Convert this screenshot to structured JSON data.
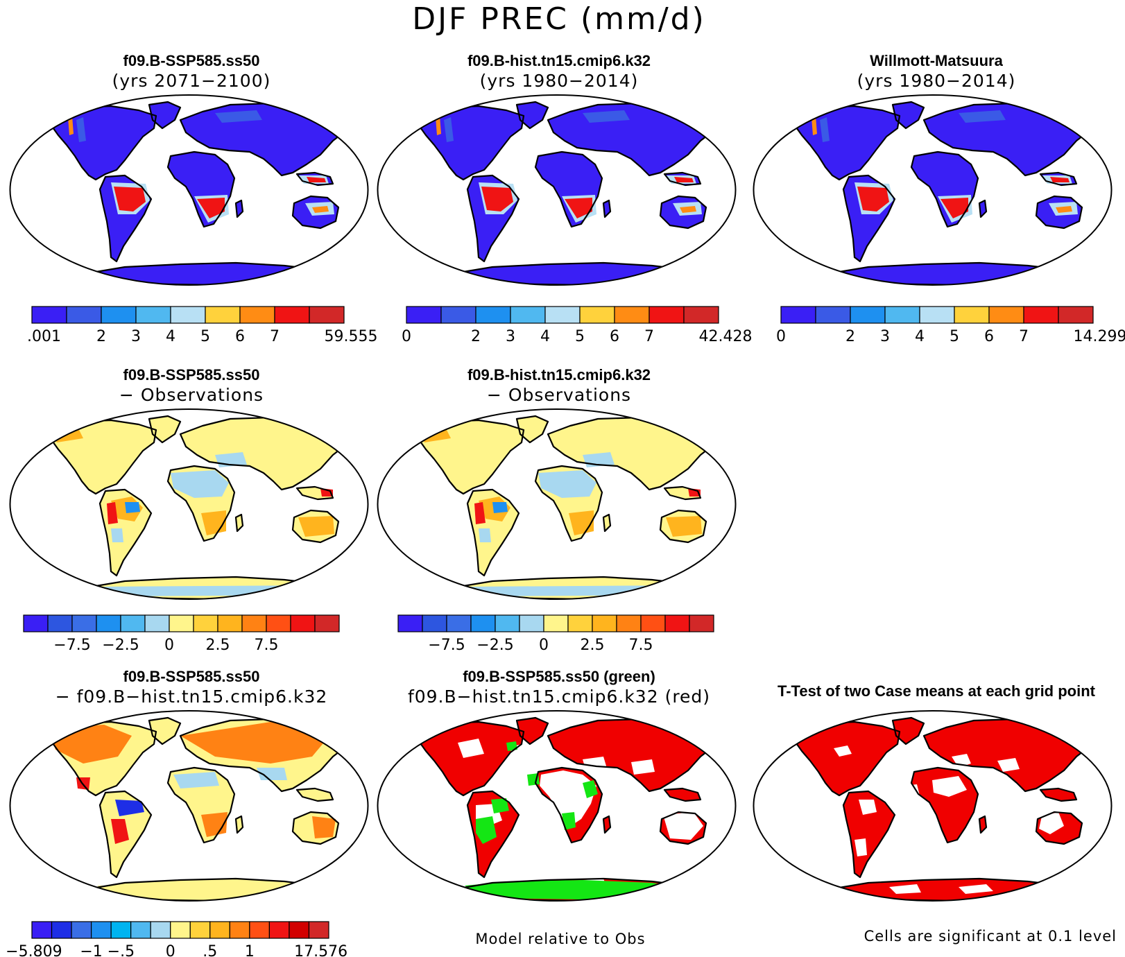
{
  "title": "DJF PREC (mm/d)",
  "colors": {
    "prec": [
      "#3a1ff5",
      "#3a5ae6",
      "#1e90f0",
      "#50b8f0",
      "#b8e0f4",
      "#ffd23c",
      "#ff8c14",
      "#f01414",
      "#d22828"
    ],
    "diff": [
      "#3a1ff5",
      "#2d56e0",
      "#3a6ee6",
      "#1e90f0",
      "#50b8f0",
      "#a8d8f0",
      "#fff58c",
      "#ffd23c",
      "#ffb41e",
      "#ff8214",
      "#ff5014",
      "#f01414",
      "#d22828"
    ],
    "bias": [
      "#3a1ff5",
      "#1e2ee6",
      "#3a6ee6",
      "#1e90f0",
      "#00b4f0",
      "#50b8f0",
      "#a8d8f0",
      "#fff58c",
      "#ffd23c",
      "#ffb41e",
      "#ff8214",
      "#ff5014",
      "#f01414",
      "#d20000",
      "#d22828"
    ],
    "sig_red": "#f00000",
    "sig_green": "#14e614"
  },
  "panels": [
    {
      "id": "p1",
      "title": "f09.B-SSP585.ss50",
      "subtitle": "(yrs 2071−2100)",
      "style": "prec"
    },
    {
      "id": "p2",
      "title": "f09.B-hist.tn15.cmip6.k32",
      "subtitle": "(yrs 1980−2014)",
      "style": "prec"
    },
    {
      "id": "p3",
      "title": "Willmott-Matsuura",
      "subtitle": "(yrs 1980−2014)",
      "style": "prec"
    },
    {
      "id": "p4",
      "title": "f09.B-SSP585.ss50",
      "subtitle": "− Observations",
      "style": "diff"
    },
    {
      "id": "p5",
      "title": "f09.B-hist.tn15.cmip6.k32",
      "subtitle": "− Observations",
      "style": "diff"
    },
    {
      "id": "p6",
      "title": "f09.B-SSP585.ss50",
      "subtitle": "− f09.B−hist.tn15.cmip6.k32",
      "style": "bias"
    },
    {
      "id": "p7",
      "title": "f09.B-SSP585.ss50 (green)",
      "subtitle": "f09.B−hist.tn15.cmip6.k32 (red)",
      "style": "sig2"
    },
    {
      "id": "p8",
      "title": "T-Test of two Case means at each grid point",
      "subtitle": "",
      "style": "sig1"
    }
  ],
  "colorbars": {
    "cb1": [
      "",
      ".001",
      "",
      "2",
      "3",
      "4",
      "5",
      "6",
      "7",
      "",
      "59.555"
    ],
    "cb2": [
      "",
      "0",
      "",
      "2",
      "3",
      "4",
      "5",
      "6",
      "7",
      "",
      "42.428"
    ],
    "cb3": [
      "",
      "0",
      "",
      "2",
      "3",
      "4",
      "5",
      "6",
      "7",
      "",
      "14.299"
    ],
    "cb4": [
      "−7.5",
      "−2.5",
      "0",
      "2.5",
      "7.5"
    ],
    "cb5": [
      "−7.5",
      "−2.5",
      "0",
      "2.5",
      "7.5"
    ],
    "cb6": [
      "−5.809",
      "−1",
      "−.5",
      "0",
      ".5",
      "1",
      "17.576"
    ]
  },
  "notes": {
    "model_rel": "Model relative to Obs",
    "significant": "Cells are significant at 0.1 level"
  }
}
